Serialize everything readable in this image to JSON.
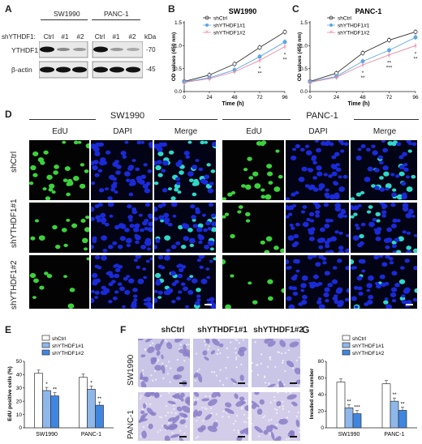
{
  "panels": {
    "A": "A",
    "B": "B",
    "C": "C",
    "D": "D",
    "E": "E",
    "F": "F",
    "G": "G"
  },
  "colors": {
    "ctrl": "#ffffff",
    "kd1": "#8fb8ea",
    "kd2": "#3f86e0",
    "line1": "#5aa7e8",
    "line2": "#e88aa0",
    "edu": "#3cd23c",
    "dapi": "#1a2ad8",
    "stain": "#8a7ec7"
  },
  "panelA": {
    "cell_lines": [
      "SW1990",
      "PANC-1"
    ],
    "row_label_prefix": "shYTHDF1:",
    "lanes": [
      "Ctrl",
      "#1",
      "#2",
      "Ctrl",
      "#1",
      "#2"
    ],
    "kda_label": "kDa",
    "proteins": [
      {
        "name": "YTHDF1",
        "kda": "-70"
      },
      {
        "name": "β-actin",
        "kda": "-45"
      }
    ]
  },
  "line_charts": [
    {
      "title": "SW1990",
      "xlabel": "Time (h)",
      "ylabel": "OD values (450 nm)",
      "xticks": [
        0,
        24,
        48,
        72,
        96
      ],
      "yticks": [
        "0.0",
        "0.5",
        "1.0",
        "1.5"
      ],
      "legend": [
        "shCtrl",
        "shYTHDF1#1",
        "shYTHDF1#2"
      ],
      "sig": [
        {
          "x": 72,
          "text": "*"
        },
        {
          "x": 72,
          "text": "**"
        },
        {
          "x": 96,
          "text": "*"
        },
        {
          "x": 96,
          "text": "**"
        }
      ]
    },
    {
      "title": "PANC-1",
      "xlabel": "Time (h)",
      "ylabel": "OD values (450 nm)",
      "xticks": [
        0,
        24,
        48,
        72,
        96
      ],
      "yticks": [
        "0.0",
        "0.5",
        "1.0",
        "1.5"
      ],
      "legend": [
        "shCtrl",
        "shYTHDF1#1",
        "shYTHDF1#2"
      ],
      "sig": [
        {
          "x": 48,
          "text": "*"
        },
        {
          "x": 48,
          "text": "**"
        },
        {
          "x": 72,
          "text": "**"
        },
        {
          "x": 72,
          "text": "***"
        },
        {
          "x": 96,
          "text": "*"
        },
        {
          "x": 96,
          "text": "**"
        }
      ]
    }
  ],
  "panelD": {
    "groups": [
      "SW1990",
      "PANC-1"
    ],
    "columns": [
      "EdU",
      "DAPI",
      "Merge",
      "EdU",
      "DAPI",
      "Merge"
    ],
    "rows": [
      "shCtrl",
      "shYTHDF1#1",
      "shYTHDF1#2"
    ]
  },
  "panelF": {
    "columns": [
      "shCtrl",
      "shYTHDF1#1",
      "shYTHDF1#2"
    ],
    "rows": [
      "SW1990",
      "PANC-1"
    ]
  },
  "chart_data": [
    {
      "type": "line",
      "title": "SW1990",
      "xlabel": "Time (h)",
      "ylabel": "OD values (450 nm)",
      "x": [
        0,
        24,
        48,
        72,
        96
      ],
      "ylim": [
        0,
        1.5
      ],
      "series": [
        {
          "name": "shCtrl",
          "values": [
            0.22,
            0.36,
            0.6,
            0.96,
            1.3
          ]
        },
        {
          "name": "shYTHDF1#1",
          "values": [
            0.21,
            0.3,
            0.47,
            0.76,
            1.08
          ]
        },
        {
          "name": "shYTHDF1#2",
          "values": [
            0.2,
            0.28,
            0.43,
            0.68,
            0.98
          ]
        }
      ]
    },
    {
      "type": "line",
      "title": "PANC-1",
      "xlabel": "Time (h)",
      "ylabel": "OD values (450 nm)",
      "x": [
        0,
        24,
        48,
        72,
        96
      ],
      "ylim": [
        0,
        1.5
      ],
      "series": [
        {
          "name": "shCtrl",
          "values": [
            0.22,
            0.4,
            0.84,
            1.12,
            1.3
          ]
        },
        {
          "name": "shYTHDF1#1",
          "values": [
            0.21,
            0.33,
            0.66,
            0.9,
            1.18
          ]
        },
        {
          "name": "shYTHDF1#2",
          "values": [
            0.2,
            0.31,
            0.58,
            0.8,
            1.0
          ]
        }
      ]
    },
    {
      "type": "bar",
      "ylabel": "EdU positive cells (%)",
      "categories": [
        "SW1990",
        "PANC-1"
      ],
      "ylim": [
        0,
        50
      ],
      "yticks": [
        "0",
        "10",
        "20",
        "30",
        "40",
        "50"
      ],
      "series": [
        {
          "name": "shCtrl",
          "values": [
            41,
            38
          ]
        },
        {
          "name": "shYTHDF1#1",
          "values": [
            28,
            29
          ]
        },
        {
          "name": "shYTHDF1#2",
          "values": [
            24,
            17
          ]
        }
      ],
      "sig": [
        [
          "",
          "*",
          "**"
        ],
        [
          "",
          "*",
          "**"
        ]
      ]
    },
    {
      "type": "bar",
      "ylabel": "Invaded cell number",
      "categories": [
        "SW1990",
        "PANC-1"
      ],
      "ylim": [
        0,
        80
      ],
      "yticks": [
        "0",
        "20",
        "40",
        "60",
        "80"
      ],
      "series": [
        {
          "name": "shCtrl",
          "values": [
            55,
            53
          ]
        },
        {
          "name": "shYTHDF1#1",
          "values": [
            24,
            32
          ]
        },
        {
          "name": "shYTHDF1#2",
          "values": [
            17,
            21
          ]
        }
      ],
      "sig": [
        [
          "",
          "**",
          "***"
        ],
        [
          "",
          "**",
          "**"
        ]
      ]
    }
  ]
}
